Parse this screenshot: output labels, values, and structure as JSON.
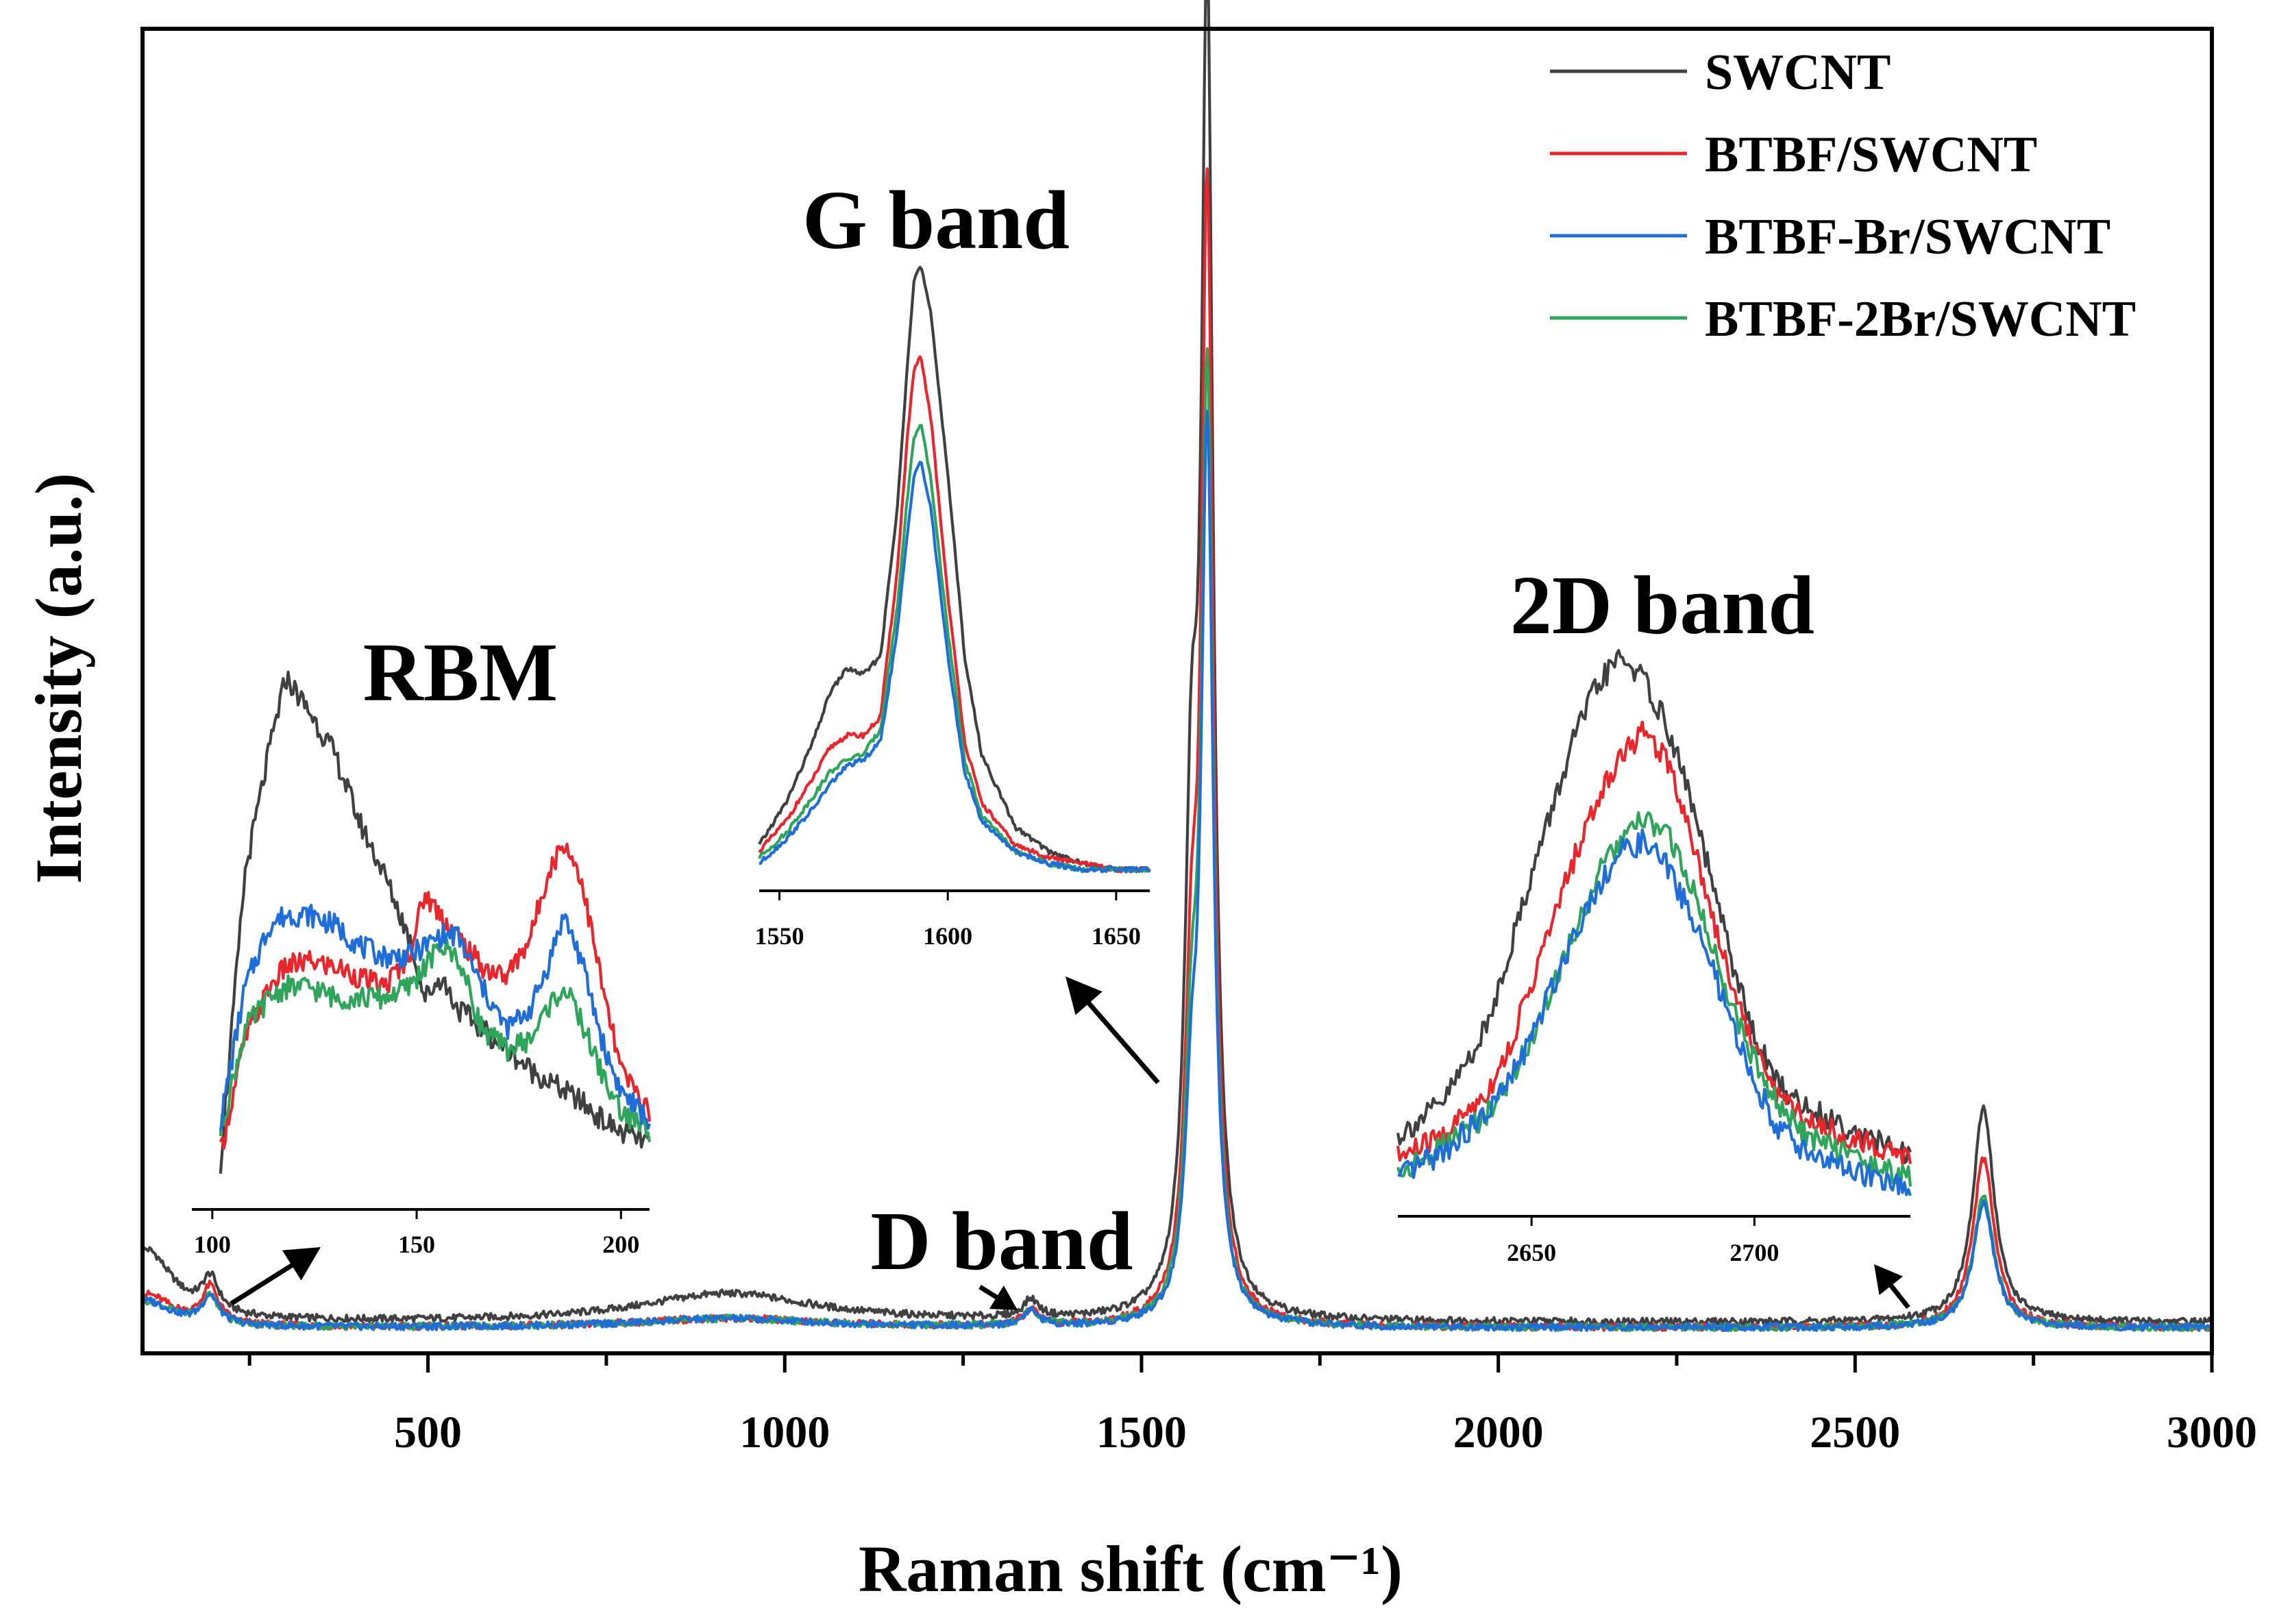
{
  "chart_data": [
    {
      "type": "line",
      "panel": "main",
      "xlabel": "Raman shift (cm⁻¹)",
      "ylabel": "Intensity (a.u.)",
      "xlim": [
        100,
        3000
      ],
      "ylim": [
        0,
        100
      ],
      "x_ticks": [
        500,
        1000,
        1500,
        2000,
        2500,
        3000
      ],
      "y_ticks_shown": false,
      "grid": false,
      "legend_position": "top-right",
      "annotations": [
        "RBM",
        "G band",
        "2D band",
        "D band"
      ],
      "peaks": {
        "x": [
          105,
          195,
          920,
          1345,
          1570,
          1592,
          2680
        ],
        "labels": [
          "",
          "",
          "",
          "D band",
          "",
          "G band",
          "2D band"
        ]
      },
      "series": [
        {
          "name": "SWCNT",
          "color": "#404040",
          "baseline": 1.2,
          "peak_heights": [
            5.5,
            2.6,
            2.2,
            1.4,
            33.0,
            99.0,
            16.5
          ]
        },
        {
          "name": "BTBF/SWCNT",
          "color": "#e8262b",
          "baseline": 0.8,
          "peak_heights": [
            2.5,
            2.8,
            0.7,
            1.2,
            21.0,
            85.0,
            13.0
          ]
        },
        {
          "name": "BTBF-Br/SWCNT",
          "color": "#1f6ed8",
          "baseline": 0.8,
          "peak_heights": [
            2.0,
            2.2,
            0.7,
            1.2,
            13.0,
            68.0,
            9.5
          ]
        },
        {
          "name": "BTBF-2Br/SWCNT",
          "color": "#2ea55a",
          "baseline": 0.8,
          "peak_heights": [
            2.0,
            2.2,
            0.7,
            1.2,
            17.0,
            72.0,
            10.0
          ]
        }
      ]
    },
    {
      "type": "line",
      "panel": "inset",
      "title": "RBM",
      "xlim": [
        95,
        207
      ],
      "x_ticks": [
        100,
        150,
        200
      ],
      "ylim": [
        0,
        100
      ],
      "x": [
        102,
        108,
        114,
        118,
        124,
        130,
        136,
        142,
        148,
        152,
        156,
        160,
        166,
        172,
        178,
        182,
        186,
        190,
        196,
        200,
        207
      ],
      "series": [
        {
          "name": "SWCNT",
          "values": [
            6,
            62,
            86,
            100,
            93,
            85,
            72,
            62,
            50,
            38,
            42,
            36,
            32,
            28,
            24,
            22,
            20,
            18,
            14,
            12,
            10
          ]
        },
        {
          "name": "BTBF/SWCNT",
          "values": [
            8,
            30,
            40,
            44,
            45,
            44,
            42,
            40,
            46,
            58,
            54,
            50,
            44,
            42,
            50,
            62,
            68,
            62,
            38,
            24,
            16
          ]
        },
        {
          "name": "BTBF-Br/SWCNT",
          "values": [
            14,
            40,
            52,
            54,
            54,
            52,
            48,
            46,
            46,
            48,
            50,
            50,
            40,
            32,
            36,
            44,
            54,
            46,
            28,
            20,
            14
          ]
        },
        {
          "name": "BTBF-2Br/SWCNT",
          "values": [
            12,
            32,
            38,
            40,
            40,
            38,
            38,
            38,
            40,
            44,
            48,
            46,
            32,
            28,
            30,
            36,
            40,
            34,
            22,
            16,
            12
          ]
        }
      ]
    },
    {
      "type": "line",
      "panel": "inset",
      "title": "G band",
      "xlim": [
        1544,
        1660
      ],
      "x_ticks": [
        1550,
        1600,
        1650
      ],
      "ylim": [
        0,
        100
      ],
      "x": [
        1544,
        1552,
        1560,
        1565,
        1570,
        1575,
        1580,
        1585,
        1588,
        1590,
        1592,
        1595,
        1600,
        1605,
        1610,
        1620,
        1630,
        1640,
        1650,
        1660
      ],
      "series": [
        {
          "name": "SWCNT",
          "values": [
            5,
            12,
            22,
            30,
            34,
            33,
            36,
            60,
            84,
            98,
            100,
            92,
            66,
            36,
            20,
            8,
            4,
            2,
            1,
            1
          ]
        },
        {
          "name": "BTBF/SWCNT",
          "values": [
            4,
            9,
            16,
            21,
            23,
            23,
            26,
            50,
            72,
            83,
            85,
            75,
            46,
            22,
            12,
            5,
            3,
            2,
            1,
            1
          ]
        },
        {
          "name": "BTBF-Br/SWCNT",
          "values": [
            2,
            6,
            11,
            15,
            18,
            19,
            22,
            40,
            56,
            66,
            68,
            60,
            36,
            17,
            9,
            4,
            2,
            1,
            1,
            1
          ]
        },
        {
          "name": "BTBF-2Br/SWCNT",
          "values": [
            3,
            7,
            13,
            17,
            19,
            20,
            24,
            44,
            62,
            72,
            74,
            65,
            40,
            19,
            10,
            4,
            2,
            1,
            1,
            1
          ]
        }
      ]
    },
    {
      "type": "line",
      "panel": "inset",
      "title": "2D band",
      "xlim": [
        2620,
        2735
      ],
      "x_ticks": [
        2650,
        2700
      ],
      "ylim": [
        0,
        100
      ],
      "x": [
        2620,
        2630,
        2640,
        2645,
        2650,
        2655,
        2660,
        2665,
        2670,
        2675,
        2680,
        2685,
        2690,
        2695,
        2700,
        2705,
        2710,
        2720,
        2735
      ],
      "series": [
        {
          "name": "SWCNT",
          "values": [
            12,
            18,
            32,
            46,
            60,
            73,
            86,
            95,
            100,
            96,
            88,
            76,
            60,
            44,
            30,
            22,
            18,
            14,
            8
          ]
        },
        {
          "name": "BTBF/SWCNT",
          "values": [
            8,
            12,
            20,
            28,
            40,
            52,
            64,
            74,
            82,
            86,
            82,
            70,
            54,
            40,
            28,
            20,
            16,
            12,
            8
          ]
        },
        {
          "name": "BTBF-Br/SWCNT",
          "values": [
            4,
            9,
            16,
            22,
            30,
            40,
            50,
            58,
            64,
            66,
            62,
            54,
            44,
            32,
            22,
            14,
            10,
            6,
            2
          ]
        },
        {
          "name": "BTBF-2Br/SWCNT",
          "values": [
            5,
            10,
            16,
            22,
            30,
            40,
            50,
            60,
            66,
            70,
            68,
            60,
            48,
            36,
            26,
            18,
            13,
            9,
            4
          ]
        }
      ]
    }
  ]
}
